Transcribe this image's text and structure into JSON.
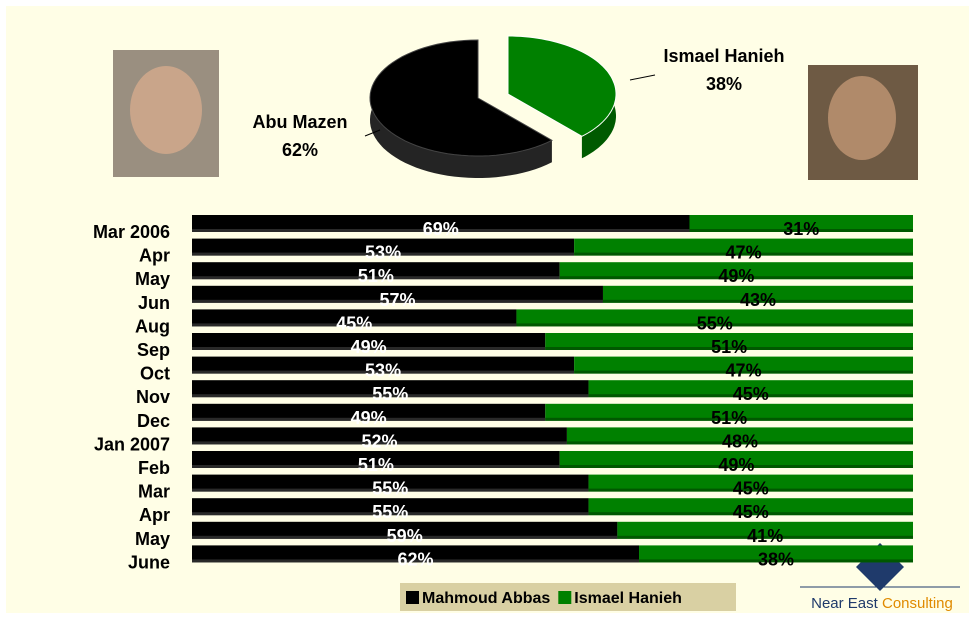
{
  "chart_data": [
    {
      "type": "pie",
      "categories": [
        "Abu Mazen",
        "Ismael Hanieh"
      ],
      "values": [
        62,
        38
      ],
      "value_labels": [
        "62%",
        "38%"
      ],
      "colors": [
        "#000000",
        "#008000"
      ]
    },
    {
      "type": "bar",
      "orientation": "horizontal",
      "stacked": true,
      "xlim": [
        0,
        100
      ],
      "categories": [
        "Mar 2006",
        "Apr",
        "May",
        "Jun",
        "Aug",
        "Sep",
        "Oct",
        "Nov",
        "Dec",
        "Jan 2007",
        "Feb",
        "Mar",
        "Apr",
        "May",
        "June"
      ],
      "series": [
        {
          "name": "Mahmoud Abbas",
          "color": "#000000",
          "label_color": "#ffffff",
          "values": [
            69,
            53,
            51,
            57,
            45,
            49,
            53,
            55,
            49,
            52,
            51,
            55,
            55,
            59,
            62
          ],
          "value_labels": [
            "69%",
            "53%",
            "51%",
            "57%",
            "45%",
            "49%",
            "53%",
            "55%",
            "49%",
            "52%",
            "51%",
            "55%",
            "55%",
            "59%",
            "62%"
          ]
        },
        {
          "name": "Ismael Hanieh",
          "color": "#008000",
          "label_color": "#000000",
          "values": [
            31,
            47,
            49,
            43,
            55,
            51,
            47,
            45,
            51,
            48,
            49,
            45,
            45,
            41,
            38
          ],
          "value_labels": [
            "31%",
            "47%",
            "49%",
            "43%",
            "55%",
            "51%",
            "47%",
            "45%",
            "51%",
            "48%",
            "49%",
            "45%",
            "45%",
            "41%",
            "38%"
          ]
        }
      ]
    }
  ],
  "brand": {
    "name": "Near East",
    "suffix": "Consulting"
  }
}
